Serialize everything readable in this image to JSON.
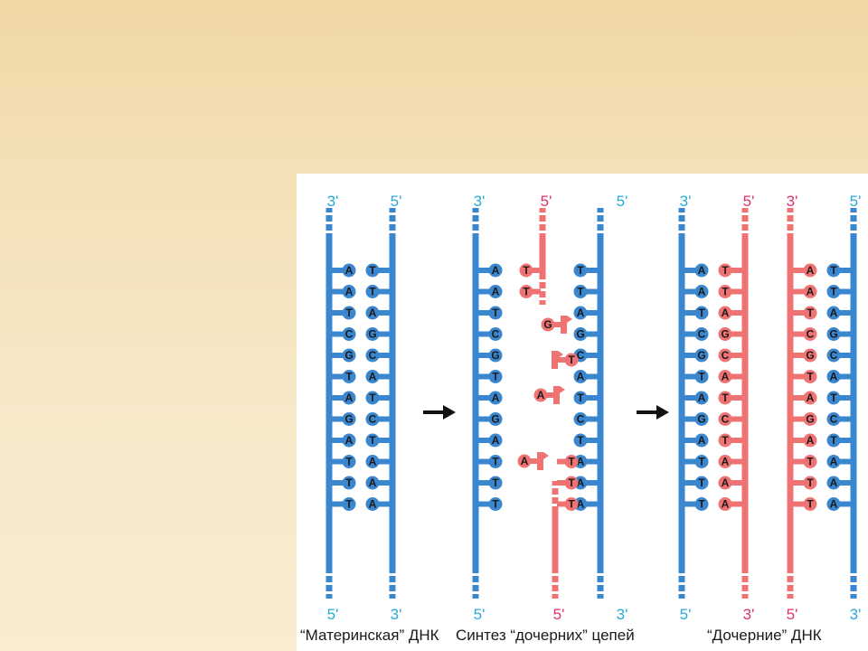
{
  "colors": {
    "parent_strand": "#3a86cf",
    "daughter_strand": "#f07373",
    "label_blue": "#29a9d8",
    "label_pink": "#e0306e",
    "arrow": "#111111"
  },
  "panels": {
    "parent": {
      "caption": "“Материнская” ДНК",
      "labels_top": [
        "3'",
        "5'"
      ],
      "labels_bottom": [
        "5'",
        "3'"
      ],
      "left_bases": [
        "A",
        "A",
        "T",
        "C",
        "G",
        "T",
        "A",
        "G",
        "A",
        "T",
        "T",
        "T"
      ],
      "right_bases": [
        "T",
        "T",
        "A",
        "G",
        "C",
        "A",
        "T",
        "C",
        "T",
        "A",
        "A",
        "A"
      ]
    },
    "synthesis": {
      "caption": "Синтез “дочерних” цепей",
      "labels_top": [
        "3'",
        "5'",
        "5'"
      ],
      "labels_bottom": [
        "5'",
        "5'",
        "3'"
      ],
      "left_bases": [
        "A",
        "A",
        "T",
        "C",
        "G",
        "T",
        "A",
        "G",
        "A",
        "T",
        "T",
        "T"
      ],
      "new_top_bases": [
        "T",
        "T"
      ],
      "free_nucleotides": [
        "G",
        "T",
        "A",
        "A"
      ],
      "right_bases": [
        "T",
        "T",
        "A",
        "G",
        "C",
        "A",
        "T",
        "C",
        "T",
        "A",
        "A",
        "A"
      ],
      "new_bottom_bases": [
        "T",
        "T",
        "T"
      ]
    },
    "daughter": {
      "caption": "“Дочерние” ДНК",
      "labels_top": [
        "3'",
        "5'",
        "3'",
        "5'"
      ],
      "labels_bottom": [
        "5'",
        "3'",
        "5'",
        "3'"
      ],
      "molecule1_left": [
        "A",
        "A",
        "T",
        "C",
        "G",
        "T",
        "A",
        "G",
        "A",
        "T",
        "T",
        "T"
      ],
      "molecule1_right": [
        "T",
        "T",
        "A",
        "G",
        "C",
        "A",
        "T",
        "C",
        "T",
        "A",
        "A",
        "A"
      ],
      "molecule2_left": [
        "A",
        "A",
        "T",
        "C",
        "G",
        "T",
        "A",
        "G",
        "A",
        "T",
        "T",
        "T"
      ],
      "molecule2_right": [
        "T",
        "T",
        "A",
        "G",
        "C",
        "A",
        "T",
        "C",
        "T",
        "A",
        "A",
        "A"
      ]
    }
  }
}
